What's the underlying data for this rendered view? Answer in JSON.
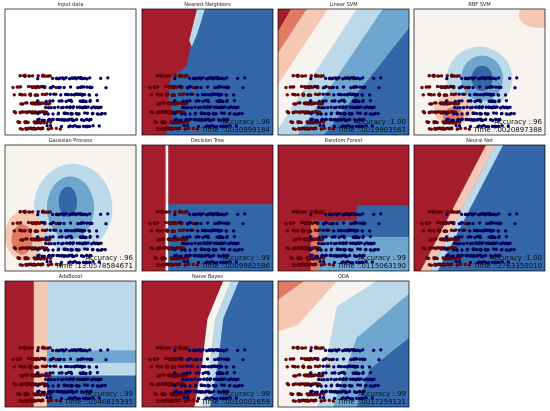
{
  "colors": {
    "red_dark": "#a51c2c",
    "red_mid": "#e07a62",
    "red_light": "#f6c7b2",
    "white": "#f7f3ef",
    "blue_light": "#bcd9ea",
    "blue_mid": "#6ea6cf",
    "blue_dark": "#3367a8",
    "point_red": "#8b0000",
    "point_blue": "#00008b"
  },
  "chart_data": [
    {
      "type": "scatter",
      "title": "Input data",
      "accuracy": "",
      "time": ""
    },
    {
      "type": "scatter",
      "title": "Nearest Neighbors",
      "accuracy": "Accuracy :.96",
      "time": "Time :.0030999184"
    },
    {
      "type": "scatter",
      "title": "Linear SVM",
      "accuracy": "Accuracy :1.00",
      "time": "Time :.0019903567"
    },
    {
      "type": "scatter",
      "title": "RBF SVM",
      "accuracy": "Accuracy :.96",
      "time": "Time :.0020897388"
    },
    {
      "type": "scatter",
      "title": "Gaussian Process",
      "accuracy": "Accuracy :.96",
      "time": "Time :13.0578584671"
    },
    {
      "type": "scatter",
      "title": "Decision Tree",
      "accuracy": "Accuracy :.99",
      "time": "Time :.0009982586"
    },
    {
      "type": "scatter",
      "title": "Random Forest",
      "accuracy": "Accuracy :.99",
      "time": "Time :.0115063190"
    },
    {
      "type": "scatter",
      "title": "Neural Net",
      "accuracy": "Accuracy :1.00",
      "time": "Time :.2763350010"
    },
    {
      "type": "scatter",
      "title": "AdaBoost",
      "accuracy": "Accuracy :.99",
      "time": "Time :.0546815395"
    },
    {
      "type": "scatter",
      "title": "Naive Bayes",
      "accuracy": "Accuracy :.99",
      "time": "Time :.0010001659"
    },
    {
      "type": "scatter",
      "title": "QDA",
      "accuracy": "Accuracy :.99",
      "time": "Time :.0017259121"
    }
  ]
}
